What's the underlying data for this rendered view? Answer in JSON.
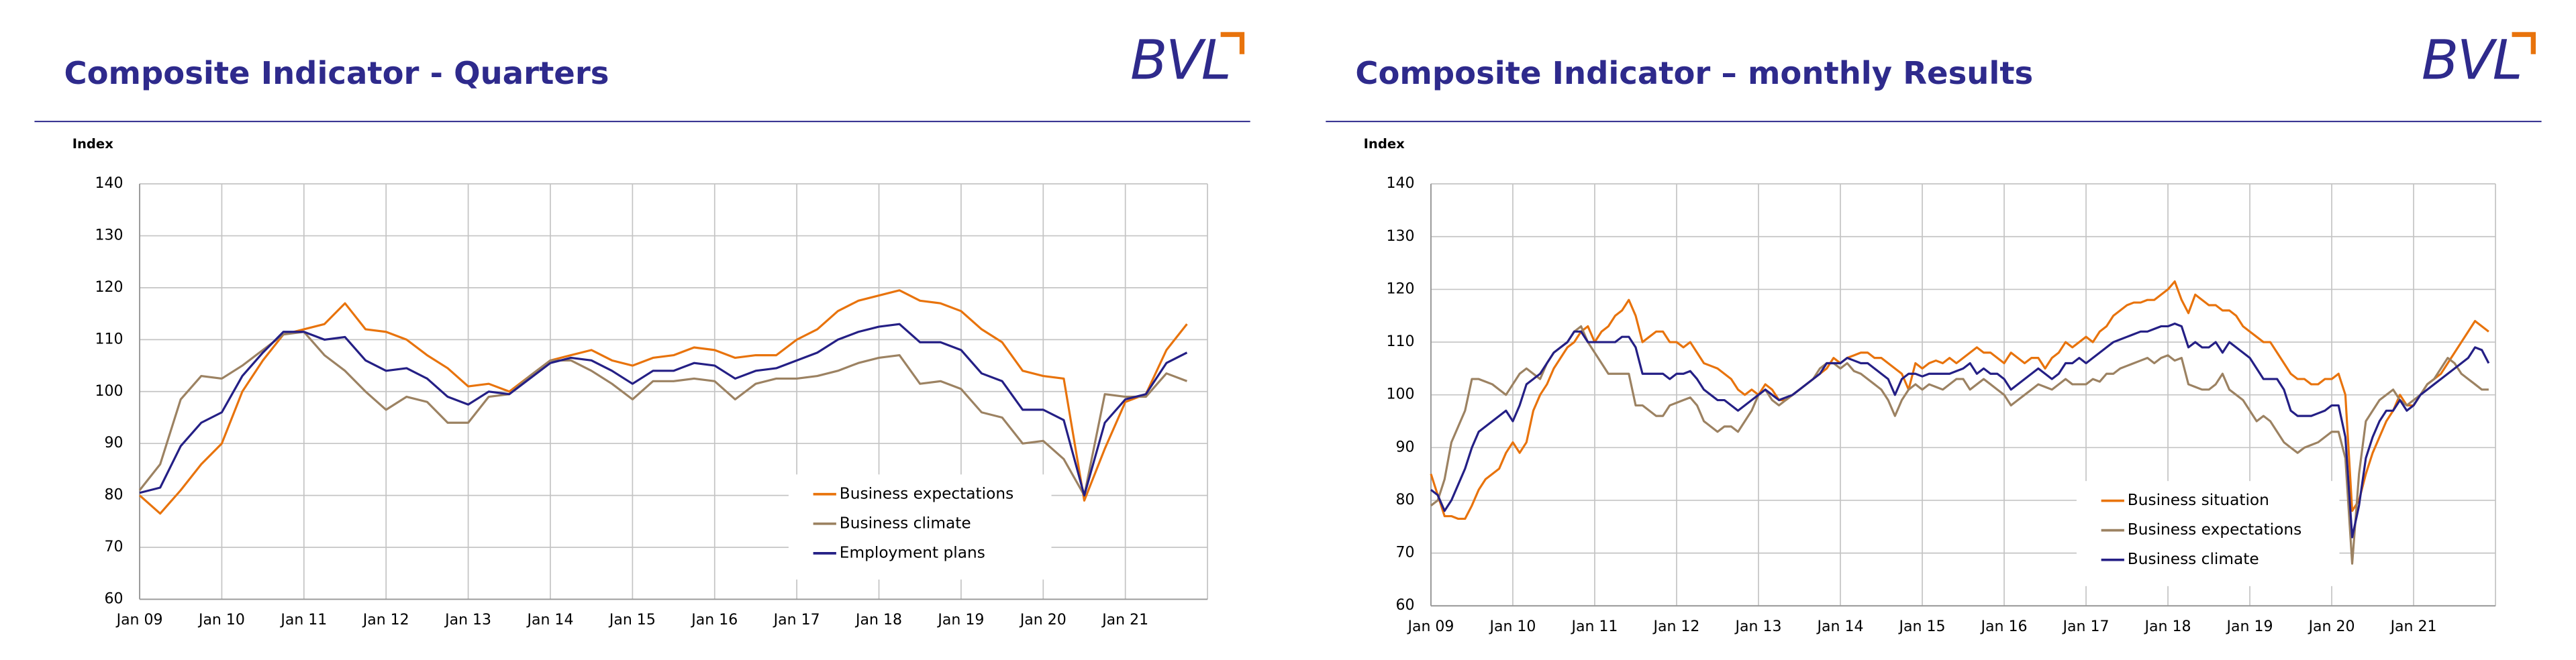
{
  "chart_data": [
    {
      "type": "line",
      "title": "Composite Indicator - Quarters",
      "logo": "BVL",
      "ylabel": "Index",
      "categories": [
        "Jan 09",
        null,
        null,
        null,
        "Jan 10",
        null,
        null,
        null,
        "Jan 11",
        null,
        null,
        null,
        "Jan 12",
        null,
        null,
        null,
        "Jan 13",
        null,
        null,
        null,
        "Jan 14",
        null,
        null,
        null,
        "Jan 15",
        null,
        null,
        null,
        "Jan 16",
        null,
        null,
        null,
        "Jan 17",
        null,
        null,
        null,
        "Jan 18",
        null,
        null,
        null,
        "Jan 19",
        null,
        null,
        null,
        "Jan 20",
        null,
        null,
        null,
        "Jan 21",
        null,
        null,
        null
      ],
      "ylim": [
        60,
        140
      ],
      "yticks": [
        60,
        70,
        80,
        90,
        100,
        110,
        120,
        130,
        140
      ],
      "grid": true,
      "legend": "lower right",
      "series": [
        {
          "name": "Business expectations",
          "color": "#e8730c",
          "values": [
            80,
            76.5,
            81,
            86,
            90,
            100,
            106,
            111,
            112,
            113,
            117,
            112,
            111.5,
            110,
            107,
            104.5,
            101,
            101.5,
            100,
            103,
            106,
            107,
            108,
            106,
            105,
            106.5,
            107,
            108.5,
            108,
            106.5,
            107,
            107,
            110,
            112,
            115.5,
            117.5,
            118.5,
            119.5,
            117.5,
            117,
            115.5,
            112,
            109.5,
            104,
            103,
            102.5,
            79,
            89,
            98,
            99.5,
            108,
            113
          ]
        },
        {
          "name": "Business climate",
          "color": "#9c8262",
          "values": [
            81,
            86,
            98.5,
            103,
            102.5,
            105,
            108,
            111,
            111.5,
            107,
            104,
            100,
            96.5,
            99,
            98,
            94,
            94,
            99,
            99.5,
            103,
            106,
            106,
            104,
            101.5,
            98.5,
            102,
            102,
            102.5,
            102,
            98.5,
            101.5,
            102.5,
            102.5,
            103,
            104,
            105.5,
            106.5,
            107,
            101.5,
            102,
            100.5,
            96,
            95,
            90,
            90.5,
            87,
            80,
            99.5,
            99,
            99,
            103.5,
            102
          ]
        },
        {
          "name": "Employment plans",
          "color": "#241f85",
          "values": [
            80.5,
            81.5,
            89.5,
            94,
            96,
            103,
            107.5,
            111.5,
            111.5,
            110,
            110.5,
            106,
            104,
            104.5,
            102.5,
            99,
            97.5,
            100,
            99.5,
            102.5,
            105.5,
            106.5,
            106,
            104,
            101.5,
            104,
            104,
            105.5,
            105,
            102.5,
            104,
            104.5,
            106,
            107.5,
            110,
            111.5,
            112.5,
            113,
            109.5,
            109.5,
            108,
            103.5,
            102,
            96.5,
            96.5,
            94.5,
            80,
            94,
            98.5,
            99.5,
            105.5,
            107.5
          ]
        }
      ]
    },
    {
      "type": "line",
      "title": "Composite Indicator – monthly Results",
      "logo": "BVL",
      "ylabel": "Index",
      "categories": [
        "Jan 09",
        null,
        null,
        null,
        null,
        null,
        null,
        null,
        null,
        null,
        null,
        null,
        "Jan 10",
        null,
        null,
        null,
        null,
        null,
        null,
        null,
        null,
        null,
        null,
        null,
        "Jan 11",
        null,
        null,
        null,
        null,
        null,
        null,
        null,
        null,
        null,
        null,
        null,
        "Jan 12",
        null,
        null,
        null,
        null,
        null,
        null,
        null,
        null,
        null,
        null,
        null,
        "Jan 13",
        null,
        null,
        null,
        null,
        null,
        null,
        null,
        null,
        null,
        null,
        null,
        "Jan 14",
        null,
        null,
        null,
        null,
        null,
        null,
        null,
        null,
        null,
        null,
        null,
        "Jan 15",
        null,
        null,
        null,
        null,
        null,
        null,
        null,
        null,
        null,
        null,
        null,
        "Jan 16",
        null,
        null,
        null,
        null,
        null,
        null,
        null,
        null,
        null,
        null,
        null,
        "Jan 17",
        null,
        null,
        null,
        null,
        null,
        null,
        null,
        null,
        null,
        null,
        null,
        "Jan 18",
        null,
        null,
        null,
        null,
        null,
        null,
        null,
        null,
        null,
        null,
        null,
        "Jan 19",
        null,
        null,
        null,
        null,
        null,
        null,
        null,
        null,
        null,
        null,
        null,
        "Jan 20",
        null,
        null,
        null,
        null,
        null,
        null,
        null,
        null,
        null,
        null,
        null,
        "Jan 21",
        null,
        null,
        null,
        null,
        null,
        null,
        null,
        null,
        null,
        null,
        null
      ],
      "ylim": [
        60,
        140
      ],
      "yticks": [
        60,
        70,
        80,
        90,
        100,
        110,
        120,
        130,
        140
      ],
      "grid": true,
      "legend": "lower right",
      "series": [
        {
          "name": "Business situation",
          "color": "#e8730c",
          "values": [
            85,
            81,
            77,
            77,
            76.5,
            76.5,
            79,
            82,
            84,
            85,
            86,
            89,
            91,
            89,
            91,
            97,
            100,
            102,
            105,
            107,
            109,
            110,
            112,
            113,
            110,
            112,
            113,
            115,
            116,
            118,
            115,
            110,
            111,
            112,
            112,
            110,
            110,
            109,
            110,
            108,
            106,
            105.5,
            105,
            104,
            103,
            101,
            100,
            101,
            100,
            102,
            101,
            99,
            99,
            100,
            101,
            102,
            103,
            104,
            105,
            107,
            106,
            107,
            107.5,
            108,
            108,
            107,
            107,
            106,
            105,
            104,
            101,
            106,
            105,
            106,
            106.5,
            106,
            107,
            106,
            107,
            108,
            109,
            108,
            108,
            107,
            106,
            108,
            107,
            106,
            107,
            107,
            105,
            107,
            108,
            110,
            109,
            110,
            111,
            110,
            112,
            113,
            115,
            116,
            117,
            117.5,
            117.5,
            118,
            118,
            119,
            120,
            121.5,
            118,
            115.5,
            119,
            118,
            117,
            117,
            116,
            116,
            115,
            113,
            112,
            111,
            110,
            110,
            108,
            106,
            104,
            103,
            103,
            102,
            102,
            103,
            103,
            104,
            100,
            78,
            80,
            85,
            89,
            92,
            95,
            97,
            100,
            98,
            98,
            100,
            102,
            103,
            104,
            106,
            108,
            110,
            112,
            114,
            113,
            112
          ]
        },
        {
          "name": "Business expectations",
          "color": "#9c8262",
          "values": [
            79,
            80,
            84,
            91,
            94,
            97,
            103,
            103,
            102.5,
            102,
            101,
            100,
            102,
            104,
            105,
            104,
            103,
            106,
            108,
            109,
            110,
            112,
            113,
            110,
            108,
            106,
            104,
            104,
            104,
            104,
            98,
            98,
            97,
            96,
            96,
            98,
            98.5,
            99,
            99.5,
            98,
            95,
            94,
            93,
            94,
            94,
            93,
            95,
            97,
            100,
            101,
            99,
            98,
            99,
            100,
            101,
            102,
            103,
            105,
            106,
            106,
            105,
            106,
            104.5,
            104,
            103,
            102,
            101,
            99,
            96,
            99,
            101,
            102,
            101,
            102,
            101.5,
            101,
            102,
            103,
            103,
            101,
            102,
            103,
            102,
            101,
            100,
            98,
            99,
            100,
            101,
            102,
            101.5,
            101,
            102,
            103,
            102,
            102,
            102,
            103,
            102.5,
            104,
            104,
            105,
            105.5,
            106,
            106.5,
            107,
            106,
            107,
            107.5,
            106.5,
            107,
            102,
            101.5,
            101,
            101,
            102,
            104,
            101,
            100,
            99,
            97,
            95,
            96,
            95,
            93,
            91,
            90,
            89,
            90,
            90.5,
            91,
            92,
            93,
            93,
            88,
            68,
            85,
            95,
            97,
            99,
            100,
            101,
            99,
            98,
            99,
            100,
            102,
            103,
            105,
            107,
            106,
            104,
            103,
            102,
            101,
            101
          ]
        },
        {
          "name": "Business climate",
          "color": "#241f85",
          "values": [
            82,
            81,
            78,
            80,
            83,
            86,
            90,
            93,
            94,
            95,
            96,
            97,
            95,
            98,
            102,
            103,
            104,
            106,
            108,
            109,
            110,
            112,
            112,
            110,
            110,
            110,
            110,
            110,
            111,
            111,
            109,
            104,
            104,
            104,
            104,
            103,
            104,
            104,
            104.5,
            103,
            101,
            100,
            99,
            99,
            98,
            97,
            98,
            99,
            100,
            101,
            100,
            99,
            99.5,
            100,
            101,
            102,
            103,
            104,
            106,
            106,
            106,
            107,
            106.5,
            106,
            106,
            105,
            104,
            103,
            100,
            103,
            104,
            104,
            103.5,
            104,
            104,
            104,
            104,
            104.5,
            105,
            106,
            104,
            105,
            104,
            104,
            103,
            101,
            102,
            103,
            104,
            105,
            104,
            103,
            104,
            106,
            106,
            107,
            106,
            107,
            108,
            109,
            110,
            110.5,
            111,
            111.5,
            112,
            112,
            112.5,
            113,
            113,
            113.5,
            113,
            109,
            110,
            109,
            109,
            110,
            108,
            110,
            109,
            108,
            107,
            105,
            103,
            103,
            103,
            101,
            97,
            96,
            96,
            96,
            96.5,
            97,
            98,
            98,
            92,
            73,
            79,
            88,
            92,
            95,
            97,
            97,
            99,
            97,
            98,
            100,
            101,
            102,
            103,
            104,
            105,
            106,
            107,
            109,
            108.5,
            106
          ]
        }
      ]
    }
  ]
}
